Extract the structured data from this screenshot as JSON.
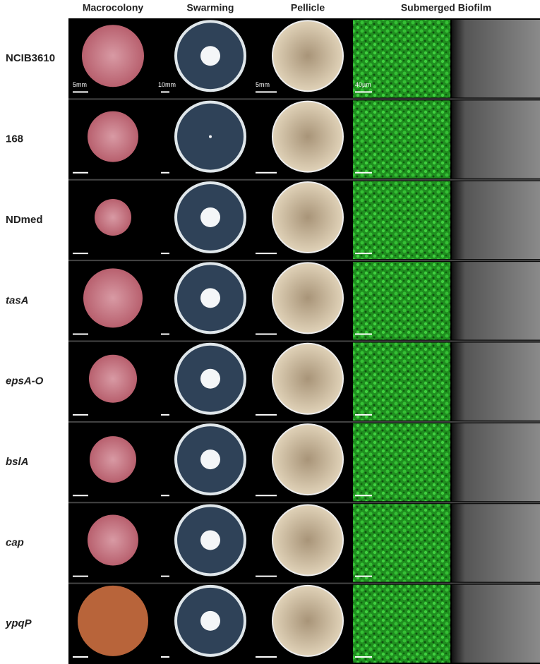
{
  "columns": [
    "Macrocolony",
    "Swarming",
    "Pellicle",
    "Submerged Biofilm"
  ],
  "rows": [
    {
      "label": "NCIB3610",
      "italic": false
    },
    {
      "label": "168",
      "italic": false
    },
    {
      "label": "NDmed",
      "italic": false
    },
    {
      "label": "tasA",
      "italic": true
    },
    {
      "label": "epsA-O",
      "italic": true
    },
    {
      "label": "bslA",
      "italic": true
    },
    {
      "label": "cap",
      "italic": true
    },
    {
      "label": "ypqP",
      "italic": true
    }
  ],
  "scale_labels": [
    "5mm",
    "10mm",
    "5mm",
    "40µm"
  ]
}
